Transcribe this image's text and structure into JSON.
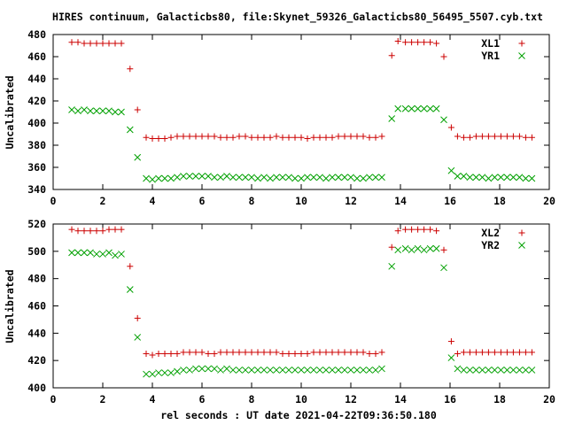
{
  "figure": {
    "title": "HIRES continuum, Galacticbs80, file:Skynet_59326_Galacticbs80_56495_5507.cyb.txt",
    "xlabel": "rel seconds : UT date 2021-04-22T09:36:50.180"
  },
  "chart_data": [
    {
      "type": "scatter",
      "ylabel": "Uncalibrated",
      "xlim": [
        0,
        20
      ],
      "ylim": [
        340,
        480
      ],
      "xticks": [
        0,
        2,
        4,
        6,
        8,
        10,
        12,
        14,
        16,
        18,
        20
      ],
      "yticks": [
        340,
        360,
        380,
        400,
        420,
        440,
        460,
        480
      ],
      "legend_position": "top-right",
      "grid": false,
      "series": [
        {
          "name": "XL1",
          "marker": "plus",
          "color": "#cc0000",
          "x": [
            0.75,
            1.0,
            1.25,
            1.5,
            1.75,
            2.0,
            2.25,
            2.5,
            2.75,
            3.1,
            3.4,
            3.75,
            4.0,
            4.25,
            4.5,
            4.75,
            5.0,
            5.25,
            5.5,
            5.75,
            6.0,
            6.25,
            6.5,
            6.75,
            7.0,
            7.25,
            7.5,
            7.75,
            8.0,
            8.25,
            8.5,
            8.75,
            9.0,
            9.25,
            9.5,
            9.75,
            10.0,
            10.25,
            10.5,
            10.75,
            11.0,
            11.25,
            11.5,
            11.75,
            12.0,
            12.25,
            12.5,
            12.75,
            13.0,
            13.25,
            13.65,
            13.9,
            14.2,
            14.45,
            14.7,
            14.95,
            15.2,
            15.45,
            15.75,
            16.05,
            16.3,
            16.55,
            16.8,
            17.05,
            17.3,
            17.55,
            17.8,
            18.05,
            18.3,
            18.55,
            18.8,
            19.05,
            19.3
          ],
          "y": [
            473,
            473,
            472,
            472,
            472,
            472,
            472,
            472,
            472,
            449,
            412,
            387,
            386,
            386,
            386,
            387,
            388,
            388,
            388,
            388,
            388,
            388,
            388,
            387,
            387,
            387,
            388,
            388,
            387,
            387,
            387,
            387,
            388,
            387,
            387,
            387,
            387,
            386,
            387,
            387,
            387,
            387,
            388,
            388,
            388,
            388,
            388,
            387,
            387,
            388,
            461,
            474,
            473,
            473,
            473,
            473,
            473,
            472,
            460,
            396,
            388,
            387,
            387,
            388,
            388,
            388,
            388,
            388,
            388,
            388,
            388,
            387,
            387
          ]
        },
        {
          "name": "YR1",
          "marker": "cross",
          "color": "#00a000",
          "x": [
            0.75,
            1.0,
            1.25,
            1.5,
            1.75,
            2.0,
            2.25,
            2.5,
            2.75,
            3.1,
            3.4,
            3.75,
            4.0,
            4.25,
            4.5,
            4.75,
            5.0,
            5.25,
            5.5,
            5.75,
            6.0,
            6.25,
            6.5,
            6.75,
            7.0,
            7.25,
            7.5,
            7.75,
            8.0,
            8.25,
            8.5,
            8.75,
            9.0,
            9.25,
            9.5,
            9.75,
            10.0,
            10.25,
            10.5,
            10.75,
            11.0,
            11.25,
            11.5,
            11.75,
            12.0,
            12.25,
            12.5,
            12.75,
            13.0,
            13.25,
            13.65,
            13.9,
            14.2,
            14.45,
            14.7,
            14.95,
            15.2,
            15.45,
            15.75,
            16.05,
            16.3,
            16.55,
            16.8,
            17.05,
            17.3,
            17.55,
            17.8,
            18.05,
            18.3,
            18.55,
            18.8,
            19.05,
            19.3
          ],
          "y": [
            412,
            411,
            412,
            411,
            411,
            411,
            411,
            410,
            410,
            394,
            369,
            350,
            349,
            350,
            350,
            350,
            351,
            352,
            352,
            352,
            352,
            352,
            351,
            351,
            352,
            351,
            351,
            351,
            351,
            350,
            351,
            350,
            351,
            351,
            351,
            350,
            350,
            351,
            351,
            351,
            350,
            351,
            351,
            351,
            351,
            350,
            350,
            351,
            351,
            351,
            404,
            413,
            413,
            413,
            413,
            413,
            413,
            413,
            403,
            357,
            352,
            352,
            351,
            351,
            351,
            350,
            351,
            351,
            351,
            351,
            351,
            350,
            350
          ]
        }
      ]
    },
    {
      "type": "scatter",
      "ylabel": "Uncalibrated",
      "xlim": [
        0,
        20
      ],
      "ylim": [
        400,
        520
      ],
      "xticks": [
        0,
        2,
        4,
        6,
        8,
        10,
        12,
        14,
        16,
        18,
        20
      ],
      "yticks": [
        400,
        420,
        440,
        460,
        480,
        500,
        520
      ],
      "legend_position": "top-right",
      "grid": false,
      "series": [
        {
          "name": "XL2",
          "marker": "plus",
          "color": "#cc0000",
          "x": [
            0.75,
            1.0,
            1.25,
            1.5,
            1.75,
            2.0,
            2.25,
            2.5,
            2.75,
            3.1,
            3.4,
            3.75,
            4.0,
            4.25,
            4.5,
            4.75,
            5.0,
            5.25,
            5.5,
            5.75,
            6.0,
            6.25,
            6.5,
            6.75,
            7.0,
            7.25,
            7.5,
            7.75,
            8.0,
            8.25,
            8.5,
            8.75,
            9.0,
            9.25,
            9.5,
            9.75,
            10.0,
            10.25,
            10.5,
            10.75,
            11.0,
            11.25,
            11.5,
            11.75,
            12.0,
            12.25,
            12.5,
            12.75,
            13.0,
            13.25,
            13.65,
            13.9,
            14.2,
            14.45,
            14.7,
            14.95,
            15.2,
            15.45,
            15.75,
            16.05,
            16.3,
            16.55,
            16.8,
            17.05,
            17.3,
            17.55,
            17.8,
            18.05,
            18.3,
            18.55,
            18.8,
            19.05,
            19.3
          ],
          "y": [
            516,
            515,
            515,
            515,
            515,
            515,
            516,
            516,
            516,
            489,
            451,
            425,
            424,
            425,
            425,
            425,
            425,
            426,
            426,
            426,
            426,
            425,
            425,
            426,
            426,
            426,
            426,
            426,
            426,
            426,
            426,
            426,
            426,
            425,
            425,
            425,
            425,
            425,
            426,
            426,
            426,
            426,
            426,
            426,
            426,
            426,
            426,
            425,
            425,
            426,
            503,
            515,
            516,
            516,
            516,
            516,
            516,
            515,
            501,
            434,
            425,
            426,
            426,
            426,
            426,
            426,
            426,
            426,
            426,
            426,
            426,
            426,
            426
          ]
        },
        {
          "name": "YR2",
          "marker": "cross",
          "color": "#00a000",
          "x": [
            0.75,
            1.0,
            1.25,
            1.5,
            1.75,
            2.0,
            2.25,
            2.5,
            2.75,
            3.1,
            3.4,
            3.75,
            4.0,
            4.25,
            4.5,
            4.75,
            5.0,
            5.25,
            5.5,
            5.75,
            6.0,
            6.25,
            6.5,
            6.75,
            7.0,
            7.25,
            7.5,
            7.75,
            8.0,
            8.25,
            8.5,
            8.75,
            9.0,
            9.25,
            9.5,
            9.75,
            10.0,
            10.25,
            10.5,
            10.75,
            11.0,
            11.25,
            11.5,
            11.75,
            12.0,
            12.25,
            12.5,
            12.75,
            13.0,
            13.25,
            13.65,
            13.9,
            14.2,
            14.45,
            14.7,
            14.95,
            15.2,
            15.45,
            15.75,
            16.05,
            16.3,
            16.55,
            16.8,
            17.05,
            17.3,
            17.55,
            17.8,
            18.05,
            18.3,
            18.55,
            18.8,
            19.05,
            19.3
          ],
          "y": [
            499,
            499,
            499,
            499,
            498,
            498,
            499,
            497,
            498,
            472,
            437,
            410,
            410,
            411,
            411,
            411,
            412,
            413,
            413,
            414,
            414,
            414,
            414,
            413,
            414,
            413,
            413,
            413,
            413,
            413,
            413,
            413,
            413,
            413,
            413,
            413,
            413,
            413,
            413,
            413,
            413,
            413,
            413,
            413,
            413,
            413,
            413,
            413,
            413,
            414,
            489,
            501,
            502,
            501,
            502,
            501,
            502,
            502,
            488,
            422,
            414,
            413,
            413,
            413,
            413,
            413,
            413,
            413,
            413,
            413,
            413,
            413,
            413
          ]
        }
      ]
    }
  ]
}
